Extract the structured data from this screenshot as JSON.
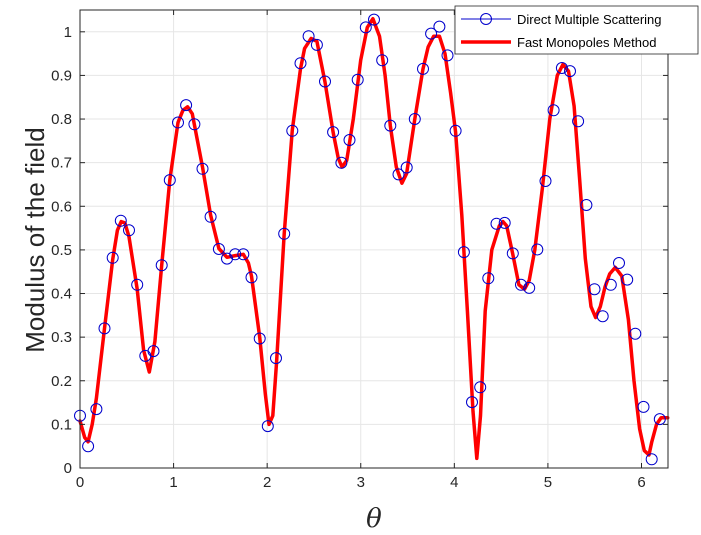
{
  "chart_data": {
    "type": "line",
    "xlabel": "θ",
    "ylabel": "Modulus of the field",
    "xlim": [
      0,
      6.2832
    ],
    "ylim": [
      0,
      1.05
    ],
    "xticks": [
      0,
      1,
      2,
      3,
      4,
      5,
      6
    ],
    "xtick_labels": [
      "0",
      "1",
      "2",
      "3",
      "4",
      "5",
      "6"
    ],
    "yticks": [
      0,
      0.1,
      0.2,
      0.3,
      0.4,
      0.5,
      0.6,
      0.7,
      0.8,
      0.9,
      1
    ],
    "ytick_labels": [
      "0",
      "0.1",
      "0.2",
      "0.3",
      "0.4",
      "0.5",
      "0.6",
      "0.7",
      "0.8",
      "0.9",
      "1"
    ],
    "grid": true,
    "legend_position": "top-right",
    "series": [
      {
        "name": "Direct Multiple Scattering",
        "style": "markers",
        "color": "#0000cc",
        "x": [
          0.0,
          0.087,
          0.175,
          0.262,
          0.349,
          0.436,
          0.524,
          0.611,
          0.698,
          0.785,
          0.873,
          0.96,
          1.047,
          1.134,
          1.222,
          1.309,
          1.396,
          1.484,
          1.571,
          1.658,
          1.745,
          1.833,
          1.92,
          2.007,
          2.094,
          2.182,
          2.269,
          2.356,
          2.443,
          2.531,
          2.618,
          2.705,
          2.793,
          2.88,
          2.967,
          3.054,
          3.142,
          3.229,
          3.316,
          3.403,
          3.491,
          3.578,
          3.665,
          3.752,
          3.84,
          3.927,
          4.014,
          4.102,
          4.189,
          4.276,
          4.363,
          4.451,
          4.538,
          4.625,
          4.712,
          4.8,
          4.887,
          4.974,
          5.061,
          5.149,
          5.236,
          5.323,
          5.411,
          5.498,
          5.585,
          5.672,
          5.76,
          5.847,
          5.934,
          6.021,
          6.109,
          6.196
        ],
        "y": [
          0.12,
          0.05,
          0.135,
          0.32,
          0.482,
          0.567,
          0.545,
          0.42,
          0.257,
          0.268,
          0.465,
          0.66,
          0.792,
          0.832,
          0.788,
          0.686,
          0.576,
          0.502,
          0.48,
          0.49,
          0.49,
          0.437,
          0.297,
          0.096,
          0.252,
          0.537,
          0.773,
          0.928,
          0.99,
          0.97,
          0.886,
          0.77,
          0.7,
          0.752,
          0.89,
          1.01,
          1.028,
          0.935,
          0.785,
          0.673,
          0.689,
          0.8,
          0.915,
          0.996,
          1.012,
          0.946,
          0.773,
          0.495,
          0.151,
          0.185,
          0.435,
          0.56,
          0.562,
          0.492,
          0.42,
          0.413,
          0.501,
          0.658,
          0.82,
          0.917,
          0.91,
          0.795,
          0.603,
          0.41,
          0.348,
          0.42,
          0.47,
          0.432,
          0.308,
          0.14,
          0.02,
          0.112
        ]
      },
      {
        "name": "Fast Monopoles Method",
        "style": "line",
        "color": "#ff0000",
        "x": [
          0.0,
          0.05,
          0.087,
          0.13,
          0.175,
          0.262,
          0.349,
          0.4,
          0.44,
          0.48,
          0.524,
          0.611,
          0.68,
          0.74,
          0.8,
          0.873,
          0.96,
          1.047,
          1.1,
          1.15,
          1.2,
          1.309,
          1.396,
          1.484,
          1.571,
          1.658,
          1.745,
          1.8,
          1.833,
          1.92,
          1.98,
          2.02,
          2.06,
          2.1,
          2.182,
          2.269,
          2.356,
          2.4,
          2.47,
          2.531,
          2.618,
          2.705,
          2.76,
          2.8,
          2.85,
          2.92,
          3.0,
          3.07,
          3.13,
          3.2,
          3.26,
          3.316,
          3.38,
          3.44,
          3.49,
          3.578,
          3.665,
          3.72,
          3.78,
          3.84,
          3.9,
          3.96,
          4.014,
          4.08,
          4.14,
          4.2,
          4.24,
          4.28,
          4.33,
          4.4,
          4.48,
          4.52,
          4.56,
          4.625,
          4.69,
          4.75,
          4.8,
          4.86,
          4.94,
          5.02,
          5.1,
          5.16,
          5.22,
          5.28,
          5.34,
          5.4,
          5.46,
          5.51,
          5.56,
          5.61,
          5.66,
          5.72,
          5.79,
          5.86,
          5.92,
          5.98,
          6.03,
          6.08,
          6.11,
          6.16,
          6.21,
          6.28
        ],
        "y": [
          0.108,
          0.07,
          0.06,
          0.1,
          0.16,
          0.32,
          0.478,
          0.545,
          0.565,
          0.562,
          0.53,
          0.41,
          0.27,
          0.22,
          0.29,
          0.465,
          0.66,
          0.792,
          0.82,
          0.828,
          0.812,
          0.69,
          0.58,
          0.503,
          0.483,
          0.487,
          0.49,
          0.47,
          0.44,
          0.3,
          0.17,
          0.1,
          0.12,
          0.24,
          0.537,
          0.775,
          0.915,
          0.962,
          0.985,
          0.978,
          0.885,
          0.77,
          0.71,
          0.69,
          0.705,
          0.8,
          0.935,
          1.01,
          1.03,
          0.99,
          0.9,
          0.785,
          0.69,
          0.653,
          0.675,
          0.8,
          0.915,
          0.965,
          0.99,
          0.99,
          0.95,
          0.86,
          0.77,
          0.58,
          0.36,
          0.13,
          0.022,
          0.12,
          0.36,
          0.5,
          0.555,
          0.565,
          0.555,
          0.49,
          0.42,
          0.41,
          0.43,
          0.5,
          0.64,
          0.8,
          0.9,
          0.925,
          0.91,
          0.83,
          0.66,
          0.48,
          0.37,
          0.345,
          0.37,
          0.415,
          0.445,
          0.46,
          0.44,
          0.34,
          0.2,
          0.09,
          0.04,
          0.03,
          0.06,
          0.1,
          0.115,
          0.115
        ]
      }
    ]
  }
}
